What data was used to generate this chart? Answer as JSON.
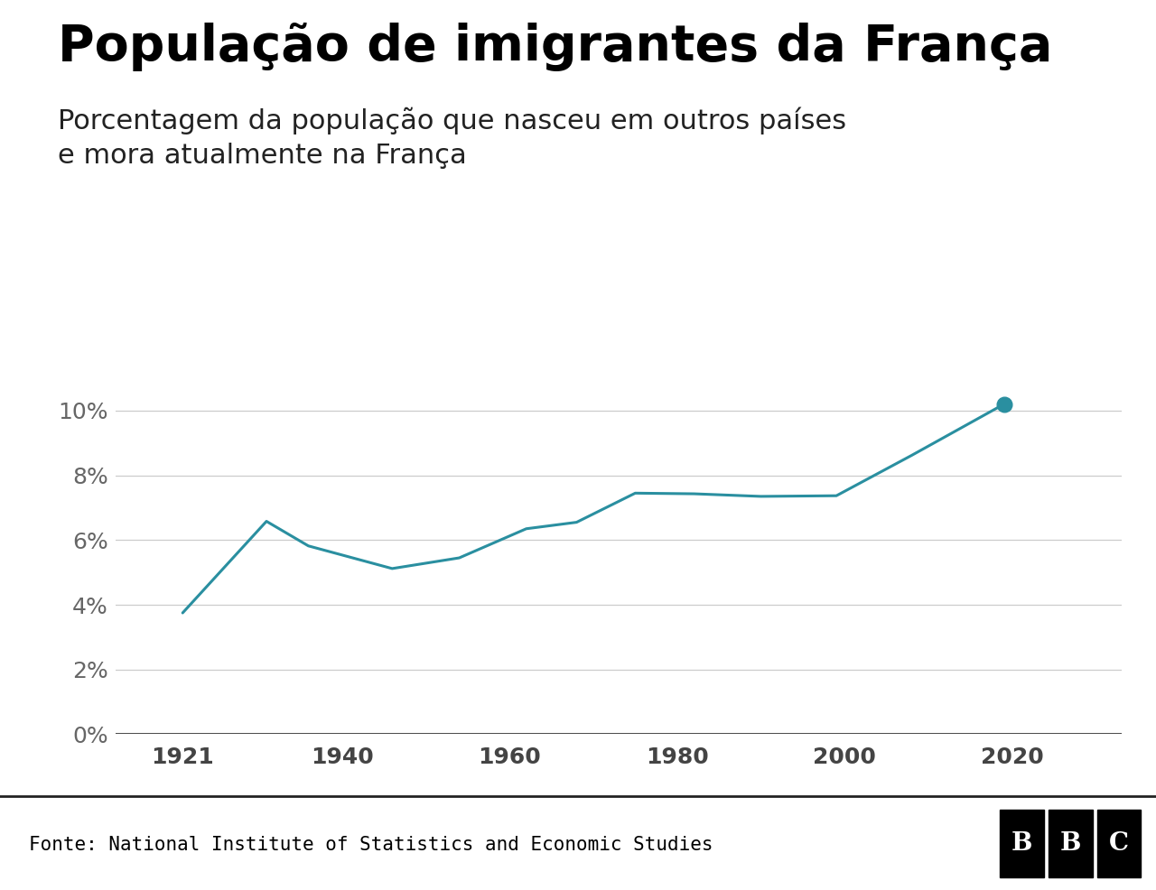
{
  "title": "População de imigrantes da França",
  "subtitle_line1": "Porcentagem da população que nasceu em outros países",
  "subtitle_line2": "e mora atualmente na França",
  "years": [
    1921,
    1931,
    1936,
    1946,
    1954,
    1962,
    1968,
    1975,
    1982,
    1990,
    1999,
    2008,
    2019
  ],
  "values": [
    3.75,
    6.58,
    5.82,
    5.12,
    5.45,
    6.35,
    6.55,
    7.45,
    7.43,
    7.35,
    7.37,
    8.62,
    10.2
  ],
  "line_color": "#2a8fa0",
  "marker_color": "#2a8fa0",
  "bg_color": "#ffffff",
  "footer_bg_color": "#e8e8e8",
  "footer_separator_color": "#222222",
  "footer_text": "Fonte: National Institute of Statistics and Economic Studies",
  "footer_text_color": "#000000",
  "bbc_text": "BBC",
  "bbc_bg": "#000000",
  "bbc_fg": "#ffffff",
  "title_fontsize": 40,
  "subtitle_fontsize": 22,
  "axis_label_fontsize": 18,
  "footer_fontsize": 15,
  "ylim": [
    0,
    11
  ],
  "yticks": [
    0,
    2,
    4,
    6,
    8,
    10
  ],
  "xticks": [
    1921,
    1940,
    1960,
    1980,
    2000,
    2020
  ],
  "xlim_left": 1913,
  "xlim_right": 2033,
  "grid_color": "#cccccc",
  "title_color": "#000000",
  "subtitle_color": "#222222"
}
